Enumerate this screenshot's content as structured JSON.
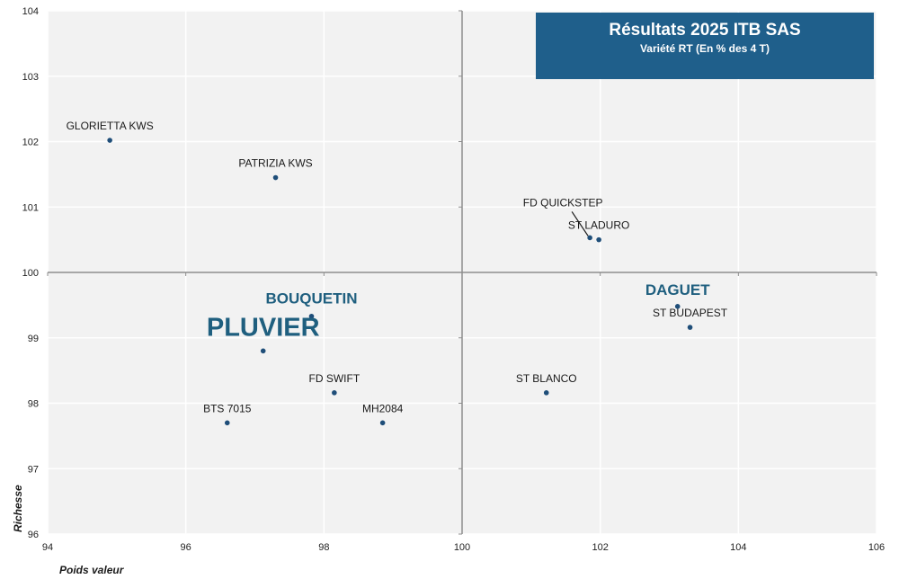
{
  "chart_data": {
    "type": "scatter",
    "title": "Résultats 2025 ITB SAS",
    "subtitle": "Variété RT (En % des 4 T)",
    "xlabel": "Poids valeur",
    "ylabel": "Richesse",
    "xlim": [
      94,
      106
    ],
    "ylim": [
      96,
      104
    ],
    "x_ticks": [
      "94",
      "96",
      "98",
      "100",
      "102",
      "104",
      "106"
    ],
    "y_ticks": [
      "96",
      "97",
      "98",
      "99",
      "100",
      "101",
      "102",
      "103",
      "104"
    ],
    "grid": true,
    "crosshair": {
      "x": 100,
      "y": 100
    },
    "colors": {
      "point": "#1f4e79",
      "title_bg": "#1f5f8b",
      "highlight": "#1f5f7f",
      "plot_bg": "#f2f2f2"
    },
    "points": [
      {
        "label": "GLORIETTA KWS",
        "x": 94.9,
        "y": 102.02
      },
      {
        "label": "PATRIZIA KWS",
        "x": 97.3,
        "y": 101.45
      },
      {
        "label": "FD QUICKSTEP",
        "x": 101.85,
        "y": 100.53
      },
      {
        "label": "ST LADURO",
        "x": 101.98,
        "y": 100.5
      },
      {
        "label": "BOUQUETIN",
        "x": 97.82,
        "y": 99.33
      },
      {
        "label": "PLUVIER",
        "x": 97.12,
        "y": 98.8
      },
      {
        "label": "DAGUET",
        "x": 103.12,
        "y": 99.48
      },
      {
        "label": "ST BUDAPEST",
        "x": 103.3,
        "y": 99.16
      },
      {
        "label": "FD SWIFT",
        "x": 98.15,
        "y": 98.16
      },
      {
        "label": "ST BLANCO",
        "x": 101.22,
        "y": 98.16
      },
      {
        "label": "BTS 7015",
        "x": 96.6,
        "y": 97.7
      },
      {
        "label": "MH2084",
        "x": 98.85,
        "y": 97.7
      }
    ]
  }
}
